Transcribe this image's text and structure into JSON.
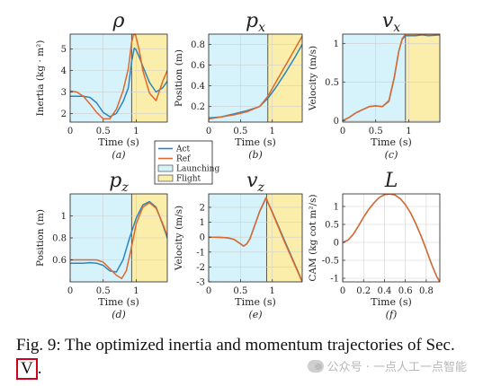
{
  "chart_data": [
    {
      "id": "a",
      "type": "line",
      "title": "ρ",
      "title_sub": "",
      "ylabel": "Inertia (kg · m²)",
      "xlabel": "Time (s)",
      "caption": "(a)",
      "xlim": [
        0,
        1.47
      ],
      "ylim": [
        1.6,
        5.7
      ],
      "xticks": [
        0,
        0.5,
        1
      ],
      "yticks": [
        2,
        3,
        4,
        5
      ],
      "regions": [
        {
          "name": "Launching",
          "from": 0,
          "to": 0.93,
          "color": "#d6f3fb"
        },
        {
          "name": "Flight",
          "from": 0.93,
          "to": 1.47,
          "color": "#fbeeaa"
        }
      ],
      "series": [
        {
          "name": "Act",
          "color": "#2b86c0",
          "x": [
            0,
            0.1,
            0.2,
            0.3,
            0.4,
            0.5,
            0.6,
            0.7,
            0.8,
            0.88,
            0.93,
            0.97,
            1.0,
            1.05,
            1.1,
            1.2,
            1.3,
            1.4,
            1.47
          ],
          "y": [
            2.8,
            2.8,
            2.8,
            2.75,
            2.5,
            2.05,
            1.85,
            2.0,
            2.55,
            3.2,
            4.4,
            5.05,
            4.95,
            4.6,
            4.2,
            3.45,
            3.0,
            3.2,
            3.5
          ]
        },
        {
          "name": "Ref",
          "color": "#e0682b",
          "x": [
            0,
            0.1,
            0.2,
            0.3,
            0.4,
            0.5,
            0.6,
            0.7,
            0.8,
            0.88,
            0.93,
            0.96,
            0.99,
            1.02,
            1.06,
            1.1,
            1.2,
            1.3,
            1.4,
            1.47
          ],
          "y": [
            3.05,
            3.0,
            2.8,
            2.45,
            2.05,
            1.75,
            1.75,
            2.2,
            3.05,
            4.1,
            5.3,
            5.7,
            5.65,
            5.3,
            4.7,
            4.0,
            2.95,
            2.6,
            3.5,
            4.0
          ]
        }
      ]
    },
    {
      "id": "b",
      "type": "line",
      "title": "p",
      "title_sub": "x",
      "ylabel": "Position (m)",
      "xlabel": "Time (s)",
      "caption": "(b)",
      "xlim": [
        0,
        1.47
      ],
      "ylim": [
        0.05,
        0.9
      ],
      "xticks": [
        0,
        0.5,
        1
      ],
      "yticks": [
        0.2,
        0.4,
        0.6,
        0.8
      ],
      "regions": [
        {
          "name": "Launching",
          "from": 0,
          "to": 0.93,
          "color": "#d6f3fb"
        },
        {
          "name": "Flight",
          "from": 0.93,
          "to": 1.47,
          "color": "#fbeeaa"
        }
      ],
      "series": [
        {
          "name": "Act",
          "color": "#2b86c0",
          "x": [
            0,
            0.2,
            0.4,
            0.6,
            0.8,
            0.93,
            1.05,
            1.2,
            1.35,
            1.47
          ],
          "y": [
            0.09,
            0.1,
            0.13,
            0.16,
            0.2,
            0.28,
            0.38,
            0.52,
            0.67,
            0.8
          ]
        },
        {
          "name": "Ref",
          "color": "#e0682b",
          "x": [
            0,
            0.2,
            0.4,
            0.6,
            0.8,
            0.93,
            1.05,
            1.2,
            1.35,
            1.47
          ],
          "y": [
            0.08,
            0.1,
            0.12,
            0.15,
            0.2,
            0.3,
            0.43,
            0.59,
            0.75,
            0.88
          ]
        }
      ]
    },
    {
      "id": "c",
      "type": "line",
      "title": "v",
      "title_sub": "x",
      "ylabel": "Velocity (m/s)",
      "xlabel": "Time (s)",
      "caption": "(c)",
      "xlim": [
        0,
        1.47
      ],
      "ylim": [
        -0.02,
        1.12
      ],
      "xticks": [
        0,
        0.5,
        1
      ],
      "yticks": [
        0,
        0.5,
        1
      ],
      "regions": [
        {
          "name": "Launching",
          "from": 0,
          "to": 0.95,
          "color": "#d6f3fb"
        },
        {
          "name": "Flight",
          "from": 0.95,
          "to": 1.47,
          "color": "#fbeeaa"
        }
      ],
      "series": [
        {
          "name": "Act",
          "color": "#2b86c0",
          "x": [
            0,
            0.1,
            0.2,
            0.3,
            0.4,
            0.5,
            0.6,
            0.7,
            0.78,
            0.85,
            0.9,
            0.95,
            1.0,
            1.1,
            1.2,
            1.3,
            1.47
          ],
          "y": [
            0.0,
            0.04,
            0.1,
            0.14,
            0.18,
            0.19,
            0.18,
            0.25,
            0.55,
            0.9,
            1.05,
            1.1,
            1.1,
            1.1,
            1.11,
            1.1,
            1.11
          ]
        },
        {
          "name": "Ref",
          "color": "#e0682b",
          "x": [
            0,
            0.1,
            0.2,
            0.3,
            0.4,
            0.5,
            0.6,
            0.7,
            0.78,
            0.85,
            0.9,
            0.95,
            1.0,
            1.1,
            1.2,
            1.3,
            1.47
          ],
          "y": [
            0.0,
            0.04,
            0.1,
            0.14,
            0.18,
            0.19,
            0.18,
            0.26,
            0.56,
            0.9,
            1.06,
            1.12,
            1.12,
            1.12,
            1.12,
            1.12,
            1.12
          ]
        }
      ]
    },
    {
      "id": "d",
      "type": "line",
      "title": "p",
      "title_sub": "z",
      "ylabel": "Position (m)",
      "xlabel": "Time (s)",
      "caption": "(d)",
      "xlim": [
        0,
        1.47
      ],
      "ylim": [
        0.4,
        1.2
      ],
      "xticks": [
        0,
        0.5,
        1
      ],
      "yticks": [
        0.6,
        0.8,
        1
      ],
      "regions": [
        {
          "name": "Launching",
          "from": 0,
          "to": 0.93,
          "color": "#d6f3fb"
        },
        {
          "name": "Flight",
          "from": 0.93,
          "to": 1.47,
          "color": "#fbeeaa"
        }
      ],
      "series": [
        {
          "name": "Act",
          "color": "#2b86c0",
          "x": [
            0,
            0.1,
            0.2,
            0.3,
            0.4,
            0.5,
            0.6,
            0.7,
            0.8,
            0.9,
            1.0,
            1.1,
            1.2,
            1.3,
            1.4,
            1.47
          ],
          "y": [
            0.57,
            0.57,
            0.57,
            0.575,
            0.57,
            0.55,
            0.5,
            0.49,
            0.6,
            0.8,
            0.98,
            1.1,
            1.13,
            1.08,
            0.92,
            0.8
          ]
        },
        {
          "name": "Ref",
          "color": "#e0682b",
          "x": [
            0,
            0.1,
            0.2,
            0.3,
            0.4,
            0.5,
            0.6,
            0.7,
            0.78,
            0.85,
            0.93,
            1.0,
            1.1,
            1.2,
            1.3,
            1.4,
            1.47
          ],
          "y": [
            0.6,
            0.6,
            0.6,
            0.6,
            0.6,
            0.58,
            0.52,
            0.46,
            0.43,
            0.5,
            0.72,
            0.93,
            1.08,
            1.12,
            1.07,
            0.93,
            0.82
          ]
        }
      ]
    },
    {
      "id": "e",
      "type": "line",
      "title": "v",
      "title_sub": "z",
      "ylabel": "Velocity (m/s)",
      "xlabel": "Time (s)",
      "caption": "(e)",
      "xlim": [
        0,
        1.47
      ],
      "ylim": [
        -3.0,
        2.9
      ],
      "xticks": [
        0,
        0.5,
        1
      ],
      "yticks": [
        -3,
        -2,
        -1,
        0,
        1,
        2
      ],
      "regions": [
        {
          "name": "Launching",
          "from": 0,
          "to": 0.91,
          "color": "#d6f3fb"
        },
        {
          "name": "Flight",
          "from": 0.91,
          "to": 1.47,
          "color": "#fbeeaa"
        }
      ],
      "series": [
        {
          "name": "Act",
          "color": "#2b86c0",
          "x": [
            0,
            0.1,
            0.2,
            0.3,
            0.4,
            0.5,
            0.55,
            0.6,
            0.65,
            0.7,
            0.8,
            0.9,
            1.0,
            1.2,
            1.47
          ],
          "y": [
            0.0,
            0.0,
            -0.02,
            -0.05,
            -0.15,
            -0.45,
            -0.6,
            -0.45,
            -0.1,
            0.5,
            1.7,
            2.6,
            1.7,
            -0.3,
            -2.95
          ]
        },
        {
          "name": "Ref",
          "color": "#e0682b",
          "x": [
            0,
            0.1,
            0.2,
            0.3,
            0.4,
            0.5,
            0.55,
            0.6,
            0.65,
            0.7,
            0.8,
            0.9,
            1.0,
            1.2,
            1.47
          ],
          "y": [
            0.0,
            0.0,
            -0.02,
            -0.05,
            -0.15,
            -0.45,
            -0.6,
            -0.45,
            -0.1,
            0.5,
            1.72,
            2.65,
            1.65,
            -0.4,
            -3.0
          ]
        }
      ]
    },
    {
      "id": "f",
      "type": "line",
      "title": "L",
      "title_sub": "",
      "ylabel": "CAM (kg cot m²/s)",
      "xlabel": "Time (s)",
      "caption": "(f)",
      "xlim": [
        0,
        0.93
      ],
      "ylim": [
        -1.1,
        1.35
      ],
      "xticks": [
        0,
        0.2,
        0.4,
        0.6,
        0.8
      ],
      "yticks": [
        -1,
        -0.5,
        0,
        0.5,
        1
      ],
      "regions": [],
      "series": [
        {
          "name": "Act",
          "color": "#2b86c0",
          "x": [
            0,
            0.05,
            0.1,
            0.15,
            0.2,
            0.25,
            0.3,
            0.35,
            0.4,
            0.45,
            0.5,
            0.55,
            0.6,
            0.65,
            0.7,
            0.75,
            0.8,
            0.85,
            0.9,
            0.93
          ],
          "y": [
            0.0,
            0.06,
            0.22,
            0.45,
            0.7,
            0.92,
            1.1,
            1.25,
            1.33,
            1.35,
            1.32,
            1.22,
            1.05,
            0.82,
            0.52,
            0.18,
            -0.2,
            -0.6,
            -0.95,
            -1.1
          ]
        },
        {
          "name": "Ref",
          "color": "#e0682b",
          "x": [
            0,
            0.05,
            0.1,
            0.15,
            0.2,
            0.25,
            0.3,
            0.35,
            0.4,
            0.45,
            0.5,
            0.55,
            0.6,
            0.65,
            0.7,
            0.75,
            0.8,
            0.85,
            0.9,
            0.93
          ],
          "y": [
            0.0,
            0.06,
            0.22,
            0.45,
            0.7,
            0.92,
            1.1,
            1.25,
            1.33,
            1.35,
            1.32,
            1.22,
            1.05,
            0.82,
            0.52,
            0.18,
            -0.2,
            -0.6,
            -0.95,
            -1.1
          ]
        }
      ]
    }
  ],
  "legend": {
    "items": [
      {
        "label": "Act",
        "kind": "line",
        "color": "#2b86c0"
      },
      {
        "label": "Ref",
        "kind": "line",
        "color": "#e0682b"
      },
      {
        "label": "Launching",
        "kind": "patch",
        "color": "#d6f3fb"
      },
      {
        "label": "Flight",
        "kind": "patch",
        "color": "#fbeeaa"
      }
    ]
  },
  "caption": {
    "text": "Fig. 9: The optimized inertia and momentum trajectories of Sec.",
    "ref": "V",
    "end": "."
  },
  "watermark": {
    "icon": "wechat-icon",
    "text": "公众号 · 一点人工一点智能"
  }
}
